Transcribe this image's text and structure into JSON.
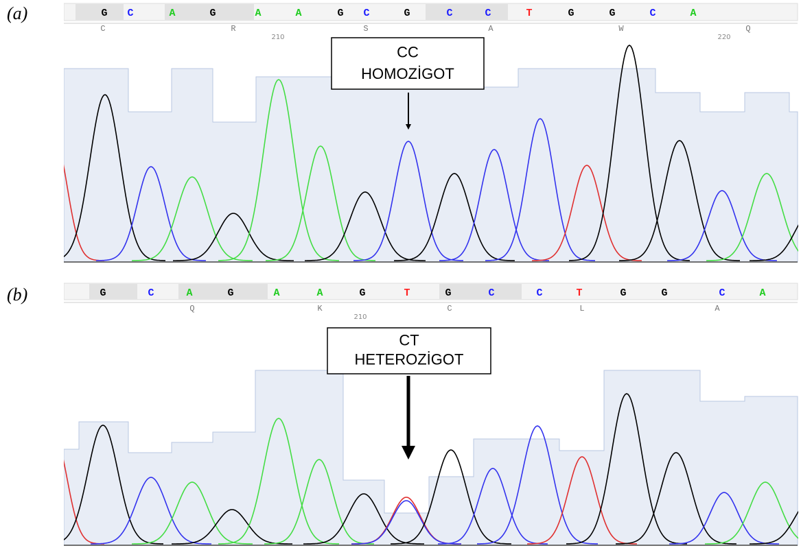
{
  "panels": [
    {
      "label": "(a)",
      "bases": [
        "G",
        "C",
        "A",
        "G",
        "A",
        "A",
        "G",
        "C",
        "G",
        "C",
        "C",
        "T",
        "G",
        "G",
        "C",
        "A"
      ],
      "amino_acids": [
        "C",
        "R",
        "S",
        "A",
        "W",
        "Q"
      ],
      "positions": [
        "210",
        "220"
      ],
      "annotation": [
        "CC",
        "HOMOZİGOT"
      ]
    },
    {
      "label": "(b)",
      "bases": [
        "G",
        "C",
        "A",
        "G",
        "A",
        "A",
        "G",
        "T",
        "G",
        "C",
        "C",
        "T",
        "G",
        "G",
        "C",
        "A"
      ],
      "amino_acids": [
        "Q",
        "K",
        "C",
        "L",
        "A"
      ],
      "positions": [
        "210"
      ],
      "annotation": [
        "CT",
        "HETEROZİGOT"
      ]
    }
  ]
}
